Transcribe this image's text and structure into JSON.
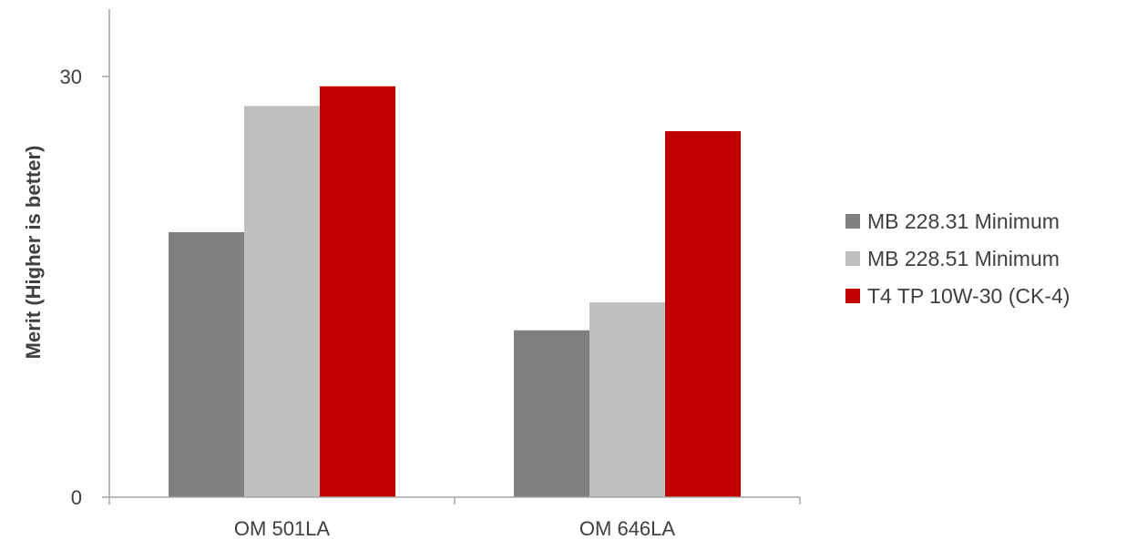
{
  "chart_data": {
    "type": "bar",
    "title": "",
    "xlabel": "",
    "ylabel": "Merit (Higher is better)",
    "ylim": [
      0,
      30
    ],
    "yticks": [
      "0",
      "30"
    ],
    "categories": [
      "OM 501LA",
      "OM 646LA"
    ],
    "series": [
      {
        "name": "MB 228.31 Minimum",
        "color": "#808080",
        "values": [
          18.9,
          11.9
        ]
      },
      {
        "name": "MB 228.51 Minimum",
        "color": "#bfbfbf",
        "values": [
          27.9,
          13.9
        ]
      },
      {
        "name": "T4 TP 10W-30 (CK-4)",
        "color": "#c00000",
        "values": [
          29.3,
          26.1
        ]
      }
    ],
    "grid": false,
    "legend": "right"
  }
}
